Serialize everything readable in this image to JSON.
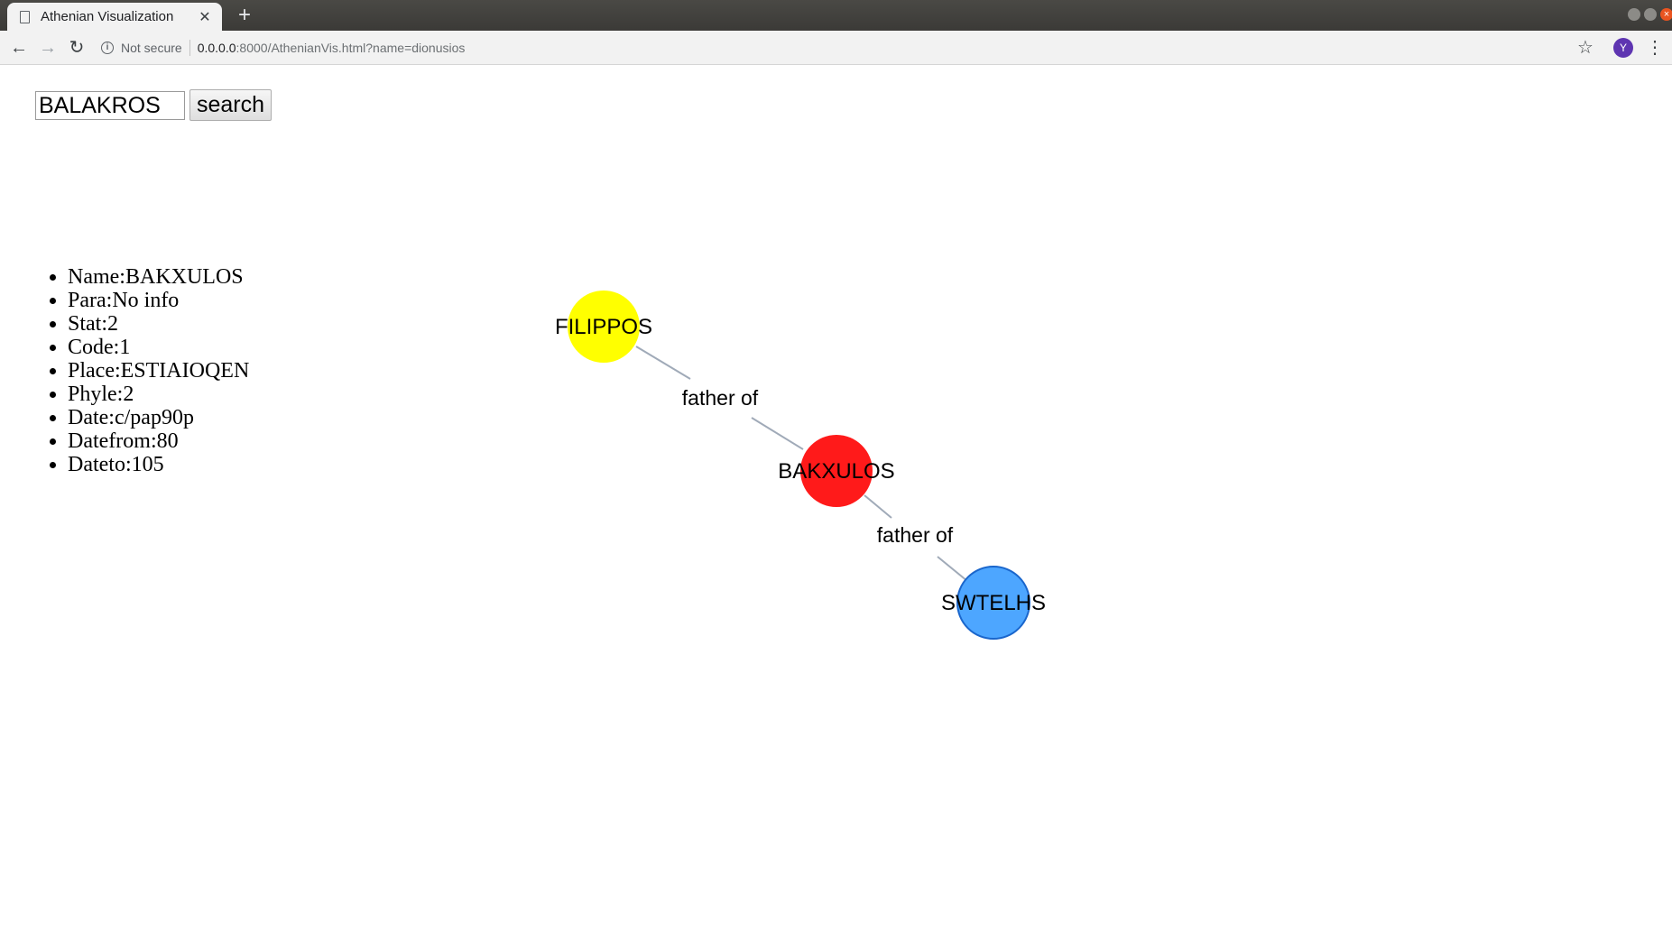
{
  "browser": {
    "tab_title": "Athenian Visualization",
    "tab_close": "✕",
    "new_tab": "+",
    "security_label": "Not secure",
    "url_host": "0.0.0.0",
    "url_rest": ":8000/AthenianVis.html?name=dionusios",
    "profile_initial": "Y"
  },
  "search": {
    "value": "BALAKROS",
    "button_label": "search"
  },
  "person_info": [
    "Name:BAKXULOS",
    "Para:No info",
    "Stat:2",
    "Code:1",
    "Place:ESTIAIOQEN",
    "Phyle:2",
    "Date:c/pap90p",
    "Datefrom:80",
    "Dateto:105"
  ],
  "graph": {
    "nodes": [
      {
        "label": "FILIPPOS",
        "color": "#ffff00"
      },
      {
        "label": "BAKXULOS",
        "color": "#ff1a1a"
      },
      {
        "label": "SWTELHS",
        "color": "#4da6ff"
      }
    ],
    "edges": [
      {
        "label": "father of"
      },
      {
        "label": "father of"
      }
    ],
    "edge_color": "#a0aab8"
  }
}
